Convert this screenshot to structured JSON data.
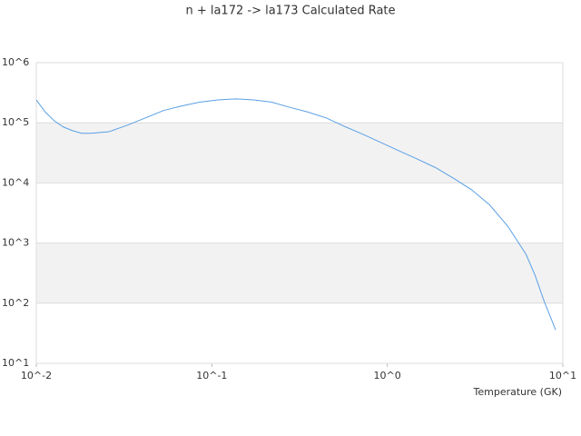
{
  "chart_data": {
    "type": "line",
    "title": "n + la172 -> la173 Calculated Rate",
    "x_label": "Temperature (GK)",
    "x": [
      0.01,
      0.01127,
      0.0127,
      0.0143,
      0.0161,
      0.0181,
      0.0204,
      0.0259,
      0.0329,
      0.0417,
      0.053,
      0.067,
      0.085,
      0.108,
      0.137,
      0.174,
      0.22,
      0.28,
      0.355,
      0.45,
      0.57,
      0.72,
      0.92,
      1.17,
      1.48,
      1.88,
      2.38,
      3.02,
      3.83,
      4.86,
      6.17,
      6.95,
      7.83,
      9.1
    ],
    "series": [
      {
        "name": "rate",
        "color": "#5aa0e6",
        "values": [
          240000,
          150000,
          107000,
          85000,
          74000,
          67000,
          67000,
          71000,
          91000,
          120000,
          160000,
          190000,
          220000,
          240000,
          250000,
          240000,
          220000,
          180000,
          150000,
          120000,
          87000,
          65000,
          47000,
          34000,
          25000,
          18000,
          12000,
          7700,
          4300,
          1900,
          650,
          290,
          107,
          36
        ]
      }
    ],
    "xlim": [
      0.01,
      10
    ],
    "ylim": [
      10,
      1000000
    ],
    "xticks": [
      {
        "value": 0.01,
        "label": "10^-2"
      },
      {
        "value": 0.1,
        "label": "10^-1"
      },
      {
        "value": 1,
        "label": "10^0"
      },
      {
        "value": 10,
        "label": "10^1"
      }
    ],
    "yticks": [
      {
        "value": 10,
        "label": "10^1"
      },
      {
        "value": 100,
        "label": "10^2"
      },
      {
        "value": 1000,
        "label": "10^3"
      },
      {
        "value": 10000,
        "label": "10^4"
      },
      {
        "value": 100000,
        "label": "10^5"
      },
      {
        "value": 1000000,
        "label": "10^6"
      }
    ],
    "xlog": true,
    "ylog": true,
    "grid": true
  }
}
